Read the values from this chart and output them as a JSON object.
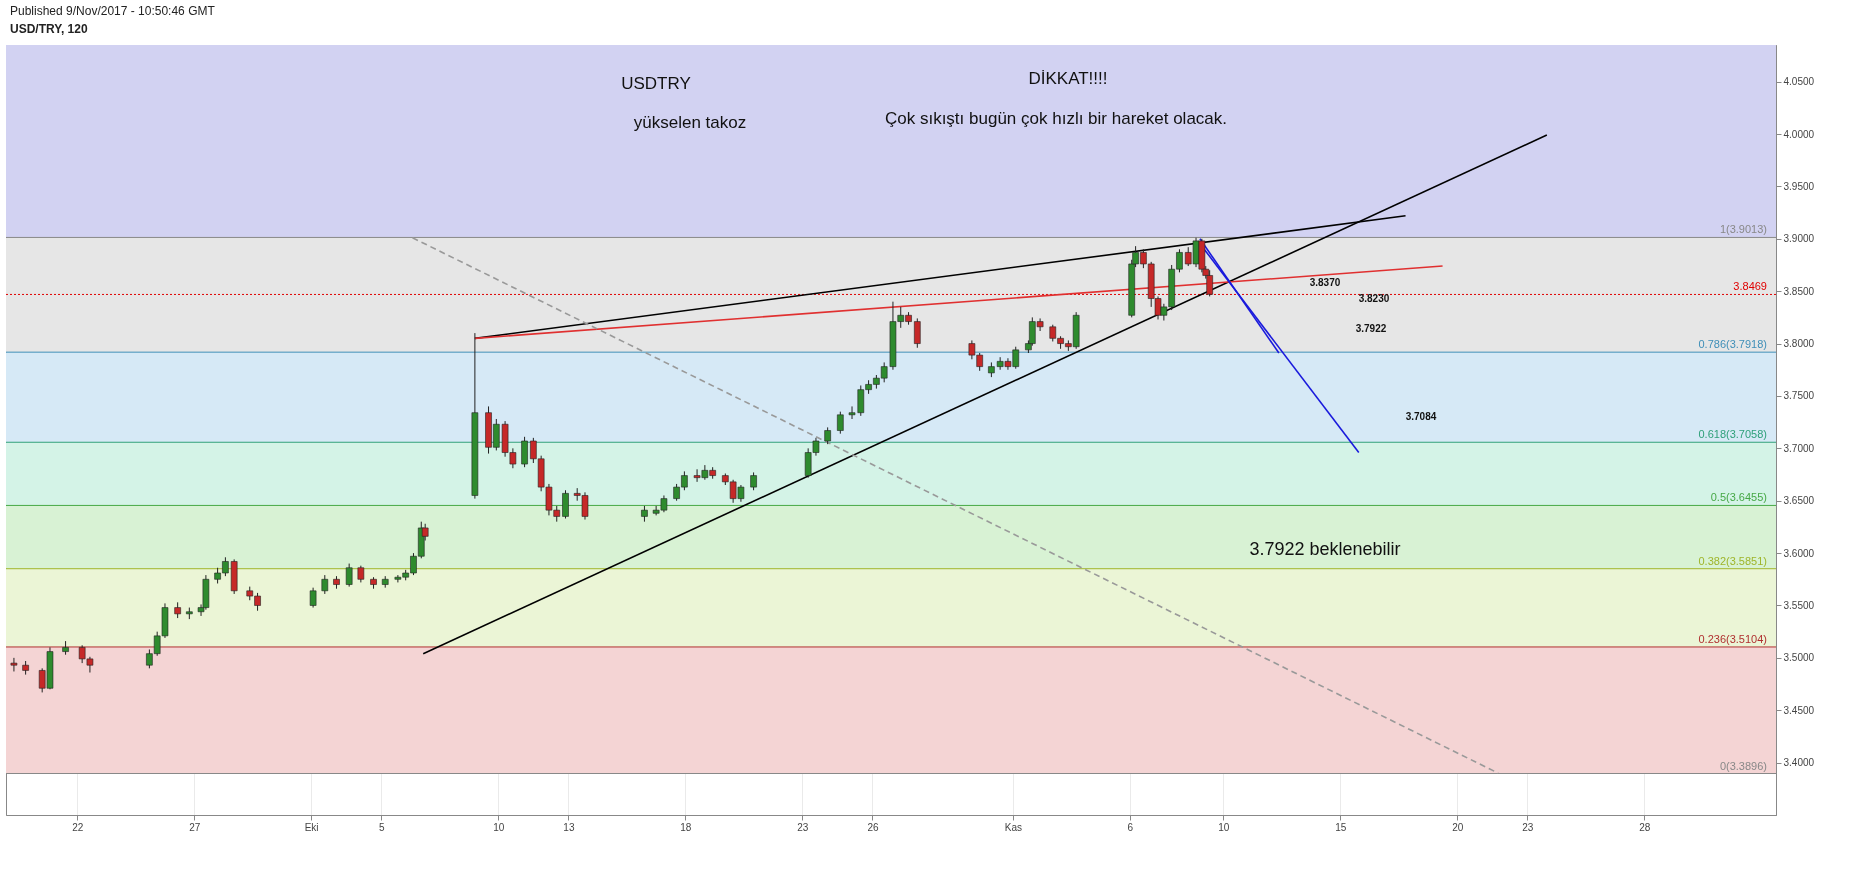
{
  "chart_data": {
    "type": "candlestick",
    "title": "USD/TRY, 120",
    "subtitle": "Published 9/Nov/2017 - 10:50:46 GMT",
    "x": [
      "2017-09-19T07:00",
      "2017-09-19T19:00",
      "2017-09-20T12:00",
      "2017-09-20T20:00",
      "2017-09-21T12:00",
      "2017-09-22T05:00",
      "2017-09-22T13:00",
      "2017-09-25T02:00",
      "2017-09-25T10:00",
      "2017-09-25T18:00",
      "2017-09-26T07:00",
      "2017-09-26T19:00",
      "2017-09-27T07:00",
      "2017-09-27T12:00",
      "2017-09-28T00:00",
      "2017-09-28T08:00",
      "2017-09-28T17:00",
      "2017-09-29T09:00",
      "2017-09-29T17:00",
      "2017-10-02T02:00",
      "2017-10-02T14:00",
      "2017-10-03T02:00",
      "2017-10-03T15:00",
      "2017-10-04T03:00",
      "2017-10-04T16:00",
      "2017-10-05T04:00",
      "2017-10-05T17:00",
      "2017-10-06T01:00",
      "2017-10-06T09:00",
      "2017-10-06T17:00",
      "2017-10-06T21:00",
      "2017-10-09T00:00",
      "2017-10-09T14:00",
      "2017-10-09T22:00",
      "2017-10-10T07:00",
      "2017-10-10T15:00",
      "2017-10-11T03:00",
      "2017-10-11T12:00",
      "2017-10-11T20:00",
      "2017-10-12T04:00",
      "2017-10-12T12:00",
      "2017-10-12T21:00",
      "2017-10-13T09:00",
      "2017-10-13T17:00",
      "2017-10-16T06:00",
      "2017-10-16T18:00",
      "2017-10-17T02:00",
      "2017-10-17T15:00",
      "2017-10-17T23:00",
      "2017-10-18T12:00",
      "2017-10-18T20:00",
      "2017-10-19T04:00",
      "2017-10-19T17:00",
      "2017-10-20T01:00",
      "2017-10-20T09:00",
      "2017-10-20T22:00",
      "2017-10-23T06:00",
      "2017-10-23T14:00",
      "2017-10-24T02:00",
      "2017-10-24T15:00",
      "2017-10-25T03:00",
      "2017-10-25T12:00",
      "2017-10-25T20:00",
      "2017-10-26T04:00",
      "2017-10-26T12:00",
      "2017-10-26T21:00",
      "2017-10-27T05:00",
      "2017-10-27T13:00",
      "2017-10-27T22:00",
      "2017-10-30T06:00",
      "2017-10-30T14:00",
      "2017-10-31T02:00",
      "2017-10-31T11:00",
      "2017-10-31T19:00",
      "2017-11-01T03:00",
      "2017-11-01T16:00",
      "2017-11-01T20:00",
      "2017-11-02T04:00",
      "2017-11-02T17:00",
      "2017-11-03T01:00",
      "2017-11-03T09:00",
      "2017-11-03T17:00",
      "2017-11-06T02:00",
      "2017-11-06T06:00",
      "2017-11-06T14:00",
      "2017-11-06T22:00",
      "2017-11-07T05:00",
      "2017-11-07T11:00",
      "2017-11-07T19:00",
      "2017-11-08T03:00",
      "2017-11-08T12:00",
      "2017-11-08T20:00",
      "2017-11-09T02:00",
      "2017-11-09T06:00",
      "2017-11-09T10:00"
    ],
    "ohlc": [
      [
        3.495,
        3.5,
        3.487,
        3.493
      ],
      [
        3.493,
        3.497,
        3.484,
        3.488
      ],
      [
        3.488,
        3.49,
        3.467,
        3.471
      ],
      [
        3.471,
        3.51,
        3.47,
        3.506
      ],
      [
        3.506,
        3.516,
        3.503,
        3.51
      ],
      [
        3.51,
        3.512,
        3.495,
        3.499
      ],
      [
        3.499,
        3.501,
        3.486,
        3.493
      ],
      [
        3.493,
        3.508,
        3.49,
        3.504
      ],
      [
        3.504,
        3.525,
        3.502,
        3.521
      ],
      [
        3.521,
        3.552,
        3.519,
        3.548
      ],
      [
        3.548,
        3.553,
        3.538,
        3.542
      ],
      [
        3.542,
        3.548,
        3.537,
        3.544
      ],
      [
        3.544,
        3.551,
        3.54,
        3.548
      ],
      [
        3.548,
        3.579,
        3.546,
        3.575
      ],
      [
        3.575,
        3.586,
        3.571,
        3.581
      ],
      [
        3.581,
        3.596,
        3.578,
        3.592
      ],
      [
        3.592,
        3.594,
        3.561,
        3.564
      ],
      [
        3.564,
        3.568,
        3.555,
        3.559
      ],
      [
        3.559,
        3.562,
        3.545,
        3.55
      ],
      [
        3.55,
        3.567,
        3.548,
        3.564
      ],
      [
        3.564,
        3.579,
        3.561,
        3.575
      ],
      [
        3.575,
        3.578,
        3.566,
        3.57
      ],
      [
        3.57,
        3.59,
        3.568,
        3.586
      ],
      [
        3.586,
        3.588,
        3.572,
        3.575
      ],
      [
        3.575,
        3.577,
        3.566,
        3.57
      ],
      [
        3.57,
        3.578,
        3.567,
        3.575
      ],
      [
        3.575,
        3.579,
        3.572,
        3.577
      ],
      [
        3.577,
        3.584,
        3.574,
        3.581
      ],
      [
        3.581,
        3.6,
        3.579,
        3.597
      ],
      [
        3.597,
        3.63,
        3.595,
        3.624
      ],
      [
        3.624,
        3.628,
        3.612,
        3.616
      ],
      [
        3.655,
        3.81,
        3.652,
        3.734
      ],
      [
        3.734,
        3.74,
        3.695,
        3.701
      ],
      [
        3.701,
        3.728,
        3.698,
        3.723
      ],
      [
        3.723,
        3.726,
        3.692,
        3.696
      ],
      [
        3.696,
        3.7,
        3.681,
        3.685
      ],
      [
        3.685,
        3.711,
        3.682,
        3.707
      ],
      [
        3.707,
        3.71,
        3.686,
        3.69
      ],
      [
        3.69,
        3.693,
        3.659,
        3.663
      ],
      [
        3.663,
        3.666,
        3.636,
        3.641
      ],
      [
        3.641,
        3.645,
        3.63,
        3.635
      ],
      [
        3.635,
        3.66,
        3.633,
        3.657
      ],
      [
        3.657,
        3.662,
        3.65,
        3.655
      ],
      [
        3.655,
        3.658,
        3.632,
        3.635
      ],
      [
        3.635,
        3.645,
        3.63,
        3.641
      ],
      [
        3.638,
        3.645,
        3.636,
        3.641
      ],
      [
        3.641,
        3.655,
        3.639,
        3.652
      ],
      [
        3.652,
        3.666,
        3.65,
        3.663
      ],
      [
        3.663,
        3.678,
        3.66,
        3.674
      ],
      [
        3.674,
        3.68,
        3.668,
        3.672
      ],
      [
        3.672,
        3.684,
        3.67,
        3.679
      ],
      [
        3.679,
        3.682,
        3.671,
        3.674
      ],
      [
        3.674,
        3.676,
        3.665,
        3.668
      ],
      [
        3.668,
        3.67,
        3.648,
        3.652
      ],
      [
        3.652,
        3.665,
        3.649,
        3.663
      ],
      [
        3.663,
        3.677,
        3.66,
        3.674
      ],
      [
        3.674,
        3.7,
        3.672,
        3.696
      ],
      [
        3.696,
        3.71,
        3.693,
        3.707
      ],
      [
        3.707,
        3.72,
        3.704,
        3.717
      ],
      [
        3.717,
        3.735,
        3.714,
        3.732
      ],
      [
        3.732,
        3.74,
        3.728,
        3.734
      ],
      [
        3.734,
        3.76,
        3.731,
        3.756
      ],
      [
        3.756,
        3.765,
        3.752,
        3.761
      ],
      [
        3.761,
        3.77,
        3.757,
        3.767
      ],
      [
        3.767,
        3.782,
        3.763,
        3.778
      ],
      [
        3.778,
        3.84,
        3.775,
        3.821
      ],
      [
        3.821,
        3.835,
        3.815,
        3.827
      ],
      [
        3.827,
        3.83,
        3.818,
        3.821
      ],
      [
        3.821,
        3.824,
        3.796,
        3.8
      ],
      [
        3.8,
        3.803,
        3.785,
        3.789
      ],
      [
        3.789,
        3.791,
        3.774,
        3.778
      ],
      [
        3.772,
        3.782,
        3.768,
        3.778
      ],
      [
        3.778,
        3.787,
        3.775,
        3.783
      ],
      [
        3.783,
        3.786,
        3.775,
        3.778
      ],
      [
        3.778,
        3.797,
        3.776,
        3.794
      ],
      [
        3.794,
        3.803,
        3.791,
        3.8
      ],
      [
        3.8,
        3.825,
        3.798,
        3.821
      ],
      [
        3.821,
        3.824,
        3.812,
        3.816
      ],
      [
        3.816,
        3.818,
        3.802,
        3.805
      ],
      [
        3.805,
        3.807,
        3.795,
        3.8
      ],
      [
        3.8,
        3.803,
        3.793,
        3.797
      ],
      [
        3.797,
        3.83,
        3.795,
        3.827
      ],
      [
        3.827,
        3.88,
        3.825,
        3.876
      ],
      [
        3.876,
        3.893,
        3.873,
        3.887
      ],
      [
        3.887,
        3.89,
        3.872,
        3.876
      ],
      [
        3.876,
        3.878,
        3.835,
        3.843
      ],
      [
        3.843,
        3.845,
        3.823,
        3.827
      ],
      [
        3.827,
        3.838,
        3.822,
        3.835
      ],
      [
        3.835,
        3.875,
        3.832,
        3.871
      ],
      [
        3.871,
        3.89,
        3.868,
        3.887
      ],
      [
        3.887,
        3.892,
        3.874,
        3.876
      ],
      [
        3.876,
        3.901,
        3.873,
        3.898
      ],
      [
        3.898,
        3.9,
        3.868,
        3.871
      ],
      [
        3.871,
        3.874,
        3.862,
        3.865
      ],
      [
        3.865,
        3.87,
        3.845,
        3.847
      ]
    ],
    "series": [
      {
        "type": "line",
        "color": "#000000",
        "x": [
          "2017-10-09T00:00",
          "2017-11-17T19:00"
        ],
        "values": [
          3.805,
          3.922
        ]
      },
      {
        "type": "line",
        "color": "#000000",
        "x": [
          "2017-10-06T19:00",
          "2017-11-23T20:00"
        ],
        "values": [
          3.504,
          3.999
        ]
      },
      {
        "type": "line",
        "color": "#e03030",
        "x": [
          "2017-10-09T00:00",
          "2017-11-19T09:00"
        ],
        "values": [
          3.805,
          3.874
        ]
      },
      {
        "type": "line",
        "color": "#999999",
        "line_style": "dashed",
        "x": [
          "2017-10-06T08:00",
          "2017-11-21T18:00"
        ],
        "values": [
          3.901,
          3.39
        ]
      },
      {
        "type": "line",
        "color": "#1a1adc",
        "x": [
          "2017-11-09T00:00",
          "2017-11-12T09:00"
        ],
        "values": [
          3.9,
          3.791
        ]
      },
      {
        "type": "line",
        "color": "#1a1adc",
        "x": [
          "2017-11-09T02:00",
          "2017-11-15T19:00"
        ],
        "values": [
          3.893,
          3.696
        ]
      }
    ],
    "bands": [
      {
        "axis": "y",
        "from": 3.9013,
        "to": 4.085,
        "color": "#d2d2f2"
      },
      {
        "axis": "y",
        "from": 3.7918,
        "to": 3.9013,
        "color": "#e6e6e6"
      },
      {
        "axis": "y",
        "from": 3.7058,
        "to": 3.7918,
        "color": "#d6e9f6"
      },
      {
        "axis": "y",
        "from": 3.6455,
        "to": 3.7058,
        "color": "#d4f3e7"
      },
      {
        "axis": "y",
        "from": 3.5851,
        "to": 3.6455,
        "color": "#d8f2d4"
      },
      {
        "axis": "y",
        "from": 3.5104,
        "to": 3.5851,
        "color": "#ebf5d6"
      },
      {
        "axis": "y",
        "from": 3.3896,
        "to": 3.5104,
        "color": "#f4d4d4"
      }
    ],
    "ref_lines": [
      {
        "axis": "y",
        "value": 3.9013,
        "label": "1(3.9013)",
        "color": "#888888"
      },
      {
        "axis": "y",
        "value": 3.7918,
        "label": "0.786(3.7918)",
        "color": "#3f8fb8"
      },
      {
        "axis": "y",
        "value": 3.7058,
        "label": "0.618(3.7058)",
        "color": "#2fa07a"
      },
      {
        "axis": "y",
        "value": 3.6455,
        "label": "0.5(3.6455)",
        "color": "#46a846"
      },
      {
        "axis": "y",
        "value": 3.5851,
        "label": "0.382(3.5851)",
        "color": "#9fb52a"
      },
      {
        "axis": "y",
        "value": 3.5104,
        "label": "0.236(3.5104)",
        "color": "#b03030"
      },
      {
        "axis": "y",
        "value": 3.3896,
        "label": "0(3.3896)",
        "color": "#888888"
      },
      {
        "axis": "y",
        "value": 3.8469,
        "label": "3.8469",
        "color": "#e00000",
        "line_style": "dotted"
      }
    ],
    "annotations": [
      "USDTRY",
      "yükselen takoz",
      "DİKKAT!!!!",
      "Çok sıkıştı bugün çok hızlı bir hareket olacak.",
      "3.7922  beklenebilir",
      "3.8370",
      "3.8230",
      "3.7922",
      "3.7084"
    ],
    "xlim": [
      "2017-09-19T04:00",
      "2017-12-03T10:00"
    ],
    "xticks": [
      {
        "value": "2017-09-22",
        "label": "22"
      },
      {
        "value": "2017-09-27",
        "label": "27"
      },
      {
        "value": "2017-10-02",
        "label": "Eki"
      },
      {
        "value": "2017-10-05",
        "label": "5"
      },
      {
        "value": "2017-10-10",
        "label": "10"
      },
      {
        "value": "2017-10-13",
        "label": "13"
      },
      {
        "value": "2017-10-18",
        "label": "18"
      },
      {
        "value": "2017-10-23",
        "label": "23"
      },
      {
        "value": "2017-10-26",
        "label": "26"
      },
      {
        "value": "2017-11-01",
        "label": "Kas"
      },
      {
        "value": "2017-11-06",
        "label": "6"
      },
      {
        "value": "2017-11-10",
        "label": "10"
      },
      {
        "value": "2017-11-15",
        "label": "15"
      },
      {
        "value": "2017-11-20",
        "label": "20"
      },
      {
        "value": "2017-11-23",
        "label": "23"
      },
      {
        "value": "2017-11-28",
        "label": "28"
      }
    ],
    "ylim": [
      3.35,
      4.085
    ],
    "yticks": [
      {
        "value": 3.4,
        "label": "3.4000"
      },
      {
        "value": 3.45,
        "label": "3.4500"
      },
      {
        "value": 3.5,
        "label": "3.5000"
      },
      {
        "value": 3.55,
        "label": "3.5500"
      },
      {
        "value": 3.6,
        "label": "3.6000"
      },
      {
        "value": 3.65,
        "label": "3.6500"
      },
      {
        "value": 3.7,
        "label": "3.7000"
      },
      {
        "value": 3.75,
        "label": "3.7500"
      },
      {
        "value": 3.8,
        "label": "3.8000"
      },
      {
        "value": 3.85,
        "label": "3.8500"
      },
      {
        "value": 3.9,
        "label": "3.9000"
      },
      {
        "value": 3.95,
        "label": "3.9500"
      },
      {
        "value": 4.0,
        "label": "4.0000"
      },
      {
        "value": 4.05,
        "label": "4.0500"
      }
    ],
    "grid": true
  }
}
